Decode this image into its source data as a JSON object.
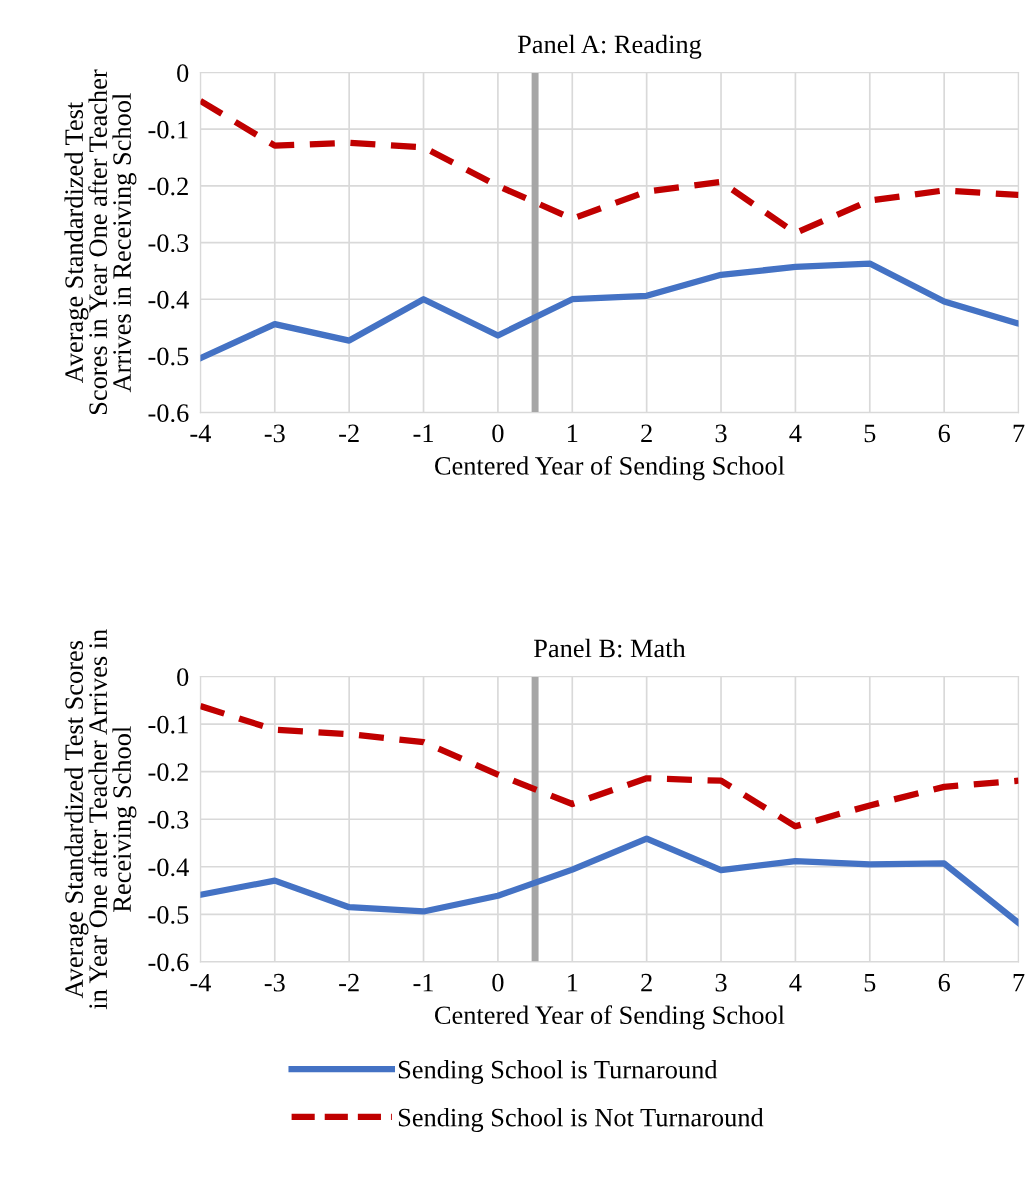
{
  "chart_data": [
    {
      "type": "line",
      "title": "Panel A: Reading",
      "xlabel": "Centered Year of Sending School",
      "ylabel": "Average Standardized Test\nScores in Year One after Teacher\nArrives in Receiving School",
      "x": [
        -4,
        -3,
        -2,
        -1,
        0,
        1,
        2,
        3,
        4,
        5,
        6,
        7
      ],
      "xlim": [
        -4,
        7
      ],
      "xticks": [
        -4,
        -3,
        -2,
        -1,
        0,
        1,
        2,
        3,
        4,
        5,
        6,
        7
      ],
      "ylim": [
        -0.6,
        0
      ],
      "yticks": [
        -0.6,
        -0.5,
        -0.4,
        -0.3,
        -0.2,
        -0.1,
        0
      ],
      "grid": true,
      "ref_lines": [
        {
          "axis": "x",
          "value": 0.5,
          "color": "#a6a6a6"
        }
      ],
      "series": [
        {
          "color": "#4472c4",
          "line_style": "solid",
          "values": [
            -0.504,
            -0.444,
            -0.473,
            -0.4,
            -0.464,
            -0.4,
            -0.394,
            -0.357,
            -0.343,
            -0.337,
            -0.404,
            -0.443
          ]
        },
        {
          "color": "#c00000",
          "line_style": "dashed",
          "values": [
            -0.05,
            -0.129,
            -0.124,
            -0.132,
            -0.2,
            -0.258,
            -0.21,
            -0.193,
            -0.283,
            -0.226,
            -0.208,
            -0.216
          ]
        }
      ]
    },
    {
      "type": "line",
      "title": "Panel B: Math",
      "xlabel": "Centered Year of Sending School",
      "ylabel": "Average Standardized Test Scores\nin Year One after Teacher Arrives in\nReceiving School",
      "x": [
        -4,
        -3,
        -2,
        -1,
        0,
        1,
        2,
        3,
        4,
        5,
        6,
        7
      ],
      "xlim": [
        -4,
        7
      ],
      "xticks": [
        -4,
        -3,
        -2,
        -1,
        0,
        1,
        2,
        3,
        4,
        5,
        6,
        7
      ],
      "ylim": [
        -0.6,
        0
      ],
      "yticks": [
        -0.6,
        -0.5,
        -0.4,
        -0.3,
        -0.2,
        -0.1,
        0
      ],
      "grid": true,
      "legend": "bottom",
      "ref_lines": [
        {
          "axis": "x",
          "value": 0.5,
          "color": "#a6a6a6"
        }
      ],
      "series": [
        {
          "name": "Sending School is Turnaround",
          "color": "#4472c4",
          "line_style": "solid",
          "values": [
            -0.459,
            -0.429,
            -0.485,
            -0.494,
            -0.461,
            -0.406,
            -0.341,
            -0.407,
            -0.388,
            -0.395,
            -0.393,
            -0.518
          ]
        },
        {
          "name": "Sending School is Not Turnaround",
          "color": "#c00000",
          "line_style": "dashed",
          "values": [
            -0.062,
            -0.112,
            -0.121,
            -0.138,
            -0.206,
            -0.268,
            -0.214,
            -0.219,
            -0.315,
            -0.271,
            -0.232,
            -0.219
          ]
        }
      ]
    }
  ]
}
